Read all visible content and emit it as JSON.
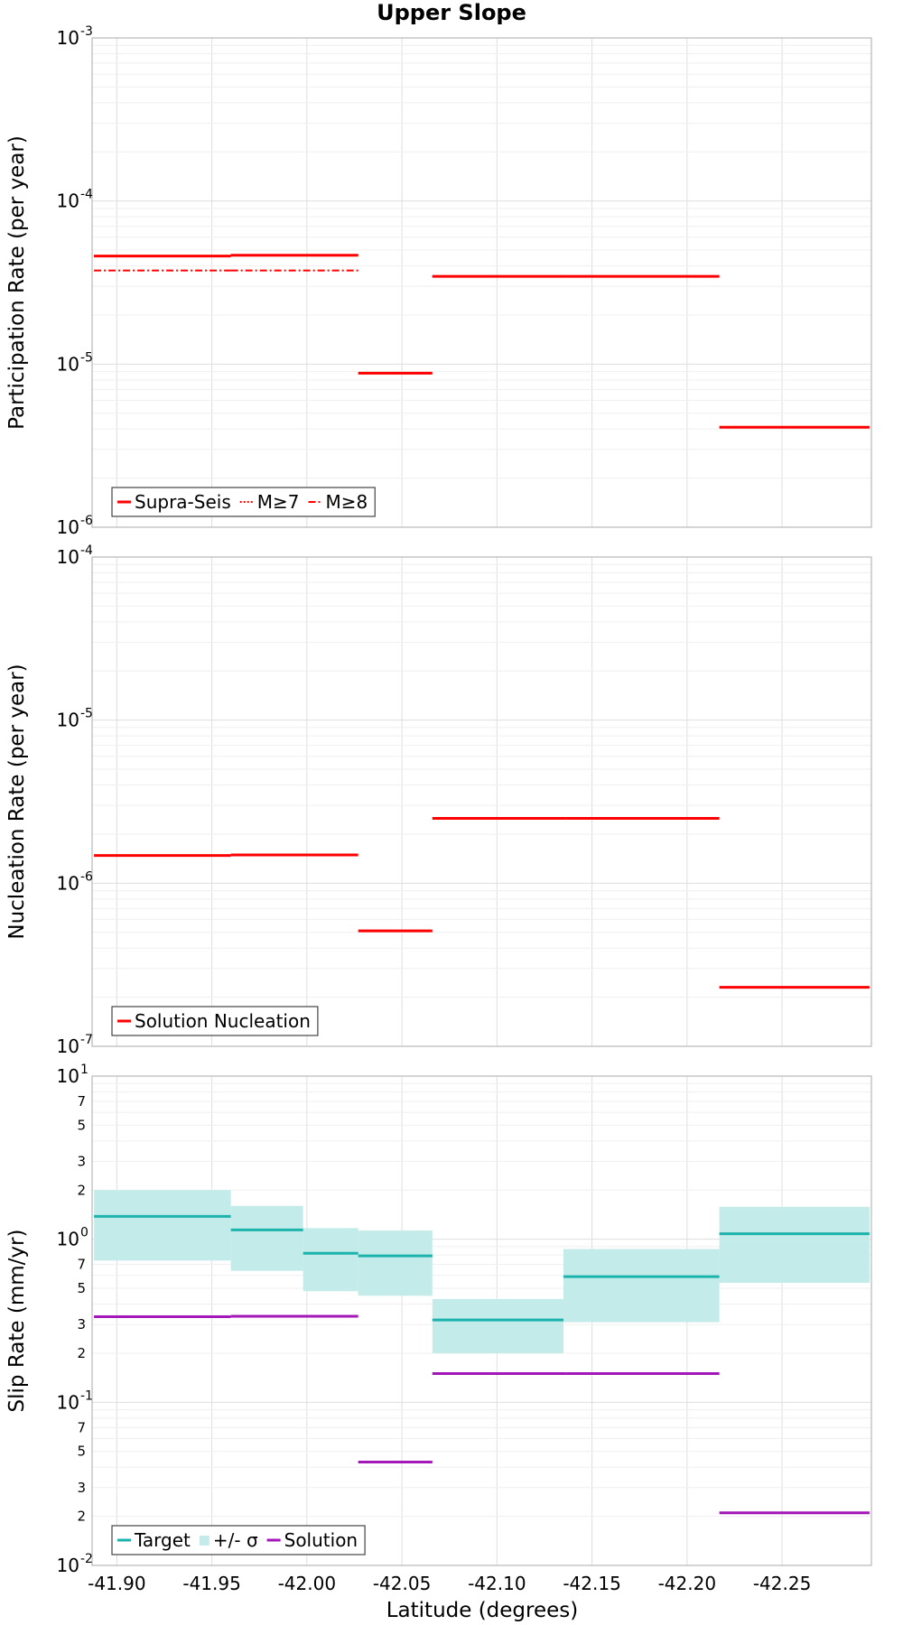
{
  "title": "Upper Slope",
  "xlabel": "Latitude (degrees)",
  "xticks": [
    -41.9,
    -41.95,
    -42.0,
    -42.05,
    -42.1,
    -42.15,
    -42.2,
    -42.25
  ],
  "xtick_labels": [
    "-41.90",
    "-41.95",
    "-42.00",
    "-42.05",
    "-42.10",
    "-42.15",
    "-42.20",
    "-42.25"
  ],
  "xlim": [
    -41.887,
    -42.297
  ],
  "chart_data": [
    {
      "type": "line",
      "name": "participation",
      "ylabel": "Participation Rate (per year)",
      "yscale": "log",
      "ylim": [
        1e-06,
        0.001
      ],
      "major_ticks": [
        {
          "base": "10",
          "exp": "-6"
        },
        {
          "base": "10",
          "exp": "-5"
        },
        {
          "base": "10",
          "exp": "-4"
        },
        {
          "base": "10",
          "exp": "-3"
        }
      ],
      "legend": {
        "position": "bottom-left"
      },
      "grid": true,
      "series": [
        {
          "name": "Supra-Seis",
          "color": "#ff0000",
          "style": "solid",
          "width": 3,
          "segments": [
            {
              "x": [
                -41.888,
                -41.96
              ],
              "y": 4.6e-05
            },
            {
              "x": [
                -41.96,
                -42.027
              ],
              "y": 4.65e-05
            },
            {
              "x": [
                -42.027,
                -42.066
              ],
              "y": 8.8e-06
            },
            {
              "x": [
                -42.066,
                -42.136
              ],
              "y": 3.45e-05
            },
            {
              "x": [
                -42.136,
                -42.217
              ],
              "y": 3.45e-05
            },
            {
              "x": [
                -42.217,
                -42.296
              ],
              "y": 4.1e-06
            }
          ]
        },
        {
          "name": "M≥7",
          "color": "#ff0000",
          "style": "dotted",
          "width": 2,
          "segments": [
            {
              "x": [
                -41.888,
                -41.96
              ],
              "y": 4.6e-05
            },
            {
              "x": [
                -41.96,
                -42.027
              ],
              "y": 4.65e-05
            },
            {
              "x": [
                -42.066,
                -42.136
              ],
              "y": 3.45e-05
            },
            {
              "x": [
                -42.136,
                -42.217
              ],
              "y": 3.45e-05
            }
          ]
        },
        {
          "name": "M≥8",
          "color": "#ff0000",
          "style": "dashdot",
          "width": 2,
          "segments": [
            {
              "x": [
                -41.888,
                -41.96
              ],
              "y": 3.75e-05
            },
            {
              "x": [
                -41.96,
                -42.027
              ],
              "y": 3.75e-05
            }
          ]
        }
      ]
    },
    {
      "type": "line",
      "name": "nucleation",
      "ylabel": "Nucleation Rate (per year)",
      "yscale": "log",
      "ylim": [
        1e-07,
        0.0001
      ],
      "major_ticks": [
        {
          "base": "10",
          "exp": "-7"
        },
        {
          "base": "10",
          "exp": "-6"
        },
        {
          "base": "10",
          "exp": "-5"
        },
        {
          "base": "10",
          "exp": "-4"
        }
      ],
      "legend": {
        "position": "bottom-left"
      },
      "grid": true,
      "series": [
        {
          "name": "Solution Nucleation",
          "color": "#ff0000",
          "style": "solid",
          "width": 3,
          "segments": [
            {
              "x": [
                -41.888,
                -41.96
              ],
              "y": 1.48e-06
            },
            {
              "x": [
                -41.96,
                -42.027
              ],
              "y": 1.49e-06
            },
            {
              "x": [
                -42.027,
                -42.066
              ],
              "y": 5.1e-07
            },
            {
              "x": [
                -42.066,
                -42.136
              ],
              "y": 2.5e-06
            },
            {
              "x": [
                -42.136,
                -42.217
              ],
              "y": 2.5e-06
            },
            {
              "x": [
                -42.217,
                -42.296
              ],
              "y": 2.3e-07
            }
          ]
        }
      ]
    },
    {
      "type": "line",
      "name": "slip",
      "ylabel": "Slip Rate (mm/yr)",
      "yscale": "log",
      "ylim": [
        0.01,
        10
      ],
      "major_ticks": [
        {
          "base": "10",
          "exp": "-2"
        },
        {
          "base": "10",
          "exp": "-1"
        },
        {
          "base": "10",
          "exp": "0"
        },
        {
          "base": "10",
          "exp": "1"
        }
      ],
      "minor_labels": [
        "2",
        "3",
        "5",
        "7"
      ],
      "legend": {
        "position": "bottom-left"
      },
      "grid": true,
      "band": {
        "name": "+/- σ",
        "color": "#c3ebe9",
        "segments": [
          {
            "x": [
              -41.888,
              -41.96
            ],
            "lo": 0.74,
            "hi": 2.0
          },
          {
            "x": [
              -41.96,
              -41.998
            ],
            "lo": 0.64,
            "hi": 1.6
          },
          {
            "x": [
              -41.998,
              -42.027
            ],
            "lo": 0.48,
            "hi": 1.17
          },
          {
            "x": [
              -42.027,
              -42.066
            ],
            "lo": 0.45,
            "hi": 1.13
          },
          {
            "x": [
              -42.066,
              -42.135
            ],
            "lo": 0.2,
            "hi": 0.43
          },
          {
            "x": [
              -42.135,
              -42.217
            ],
            "lo": 0.31,
            "hi": 0.87
          },
          {
            "x": [
              -42.217,
              -42.296
            ],
            "lo": 0.54,
            "hi": 1.58
          }
        ]
      },
      "series": [
        {
          "name": "Target",
          "color": "#1db3ad",
          "style": "solid",
          "width": 3,
          "segments": [
            {
              "x": [
                -41.888,
                -41.96
              ],
              "y": 1.38
            },
            {
              "x": [
                -41.96,
                -41.998
              ],
              "y": 1.14
            },
            {
              "x": [
                -41.998,
                -42.027
              ],
              "y": 0.82
            },
            {
              "x": [
                -42.027,
                -42.066
              ],
              "y": 0.79
            },
            {
              "x": [
                -42.066,
                -42.135
              ],
              "y": 0.32
            },
            {
              "x": [
                -42.135,
                -42.217
              ],
              "y": 0.59
            },
            {
              "x": [
                -42.217,
                -42.296
              ],
              "y": 1.08
            }
          ]
        },
        {
          "name": "Solution",
          "color": "#a316b8",
          "style": "solid",
          "width": 3,
          "segments": [
            {
              "x": [
                -41.888,
                -41.96
              ],
              "y": 0.335
            },
            {
              "x": [
                -41.96,
                -42.027
              ],
              "y": 0.337
            },
            {
              "x": [
                -42.027,
                -42.066
              ],
              "y": 0.043
            },
            {
              "x": [
                -42.066,
                -42.136
              ],
              "y": 0.15
            },
            {
              "x": [
                -42.136,
                -42.217
              ],
              "y": 0.15
            },
            {
              "x": [
                -42.217,
                -42.296
              ],
              "y": 0.021
            }
          ]
        }
      ]
    }
  ]
}
